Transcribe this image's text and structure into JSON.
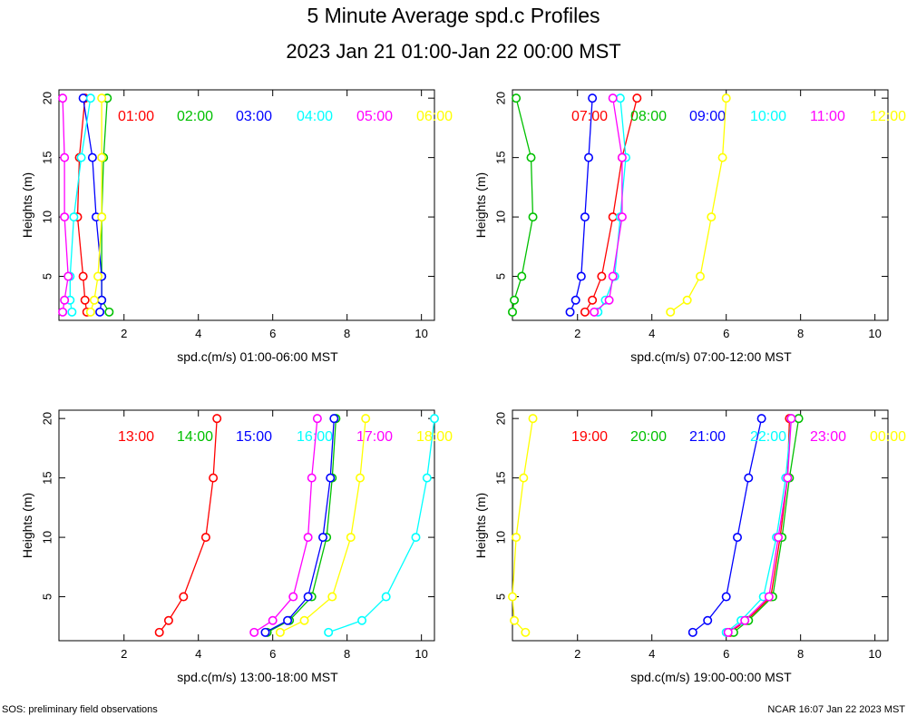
{
  "title": "5 Minute Average spd.c Profiles",
  "subtitle": "2023 Jan 21 01:00-Jan 22 00:00 MST",
  "footer_left": "SOS: preliminary field observations",
  "footer_right": "NCAR 16:07 Jan 22 2023 MST",
  "colors": [
    "#ff0000",
    "#00c000",
    "#0000ff",
    "#00ffff",
    "#ff00ff",
    "#ffff00"
  ],
  "chart_data": [
    {
      "type": "line",
      "xlabel": "spd.c(m/s) 01:00-06:00 MST",
      "ylabel": "Heights (m)",
      "xlim": [
        0.25,
        10.35
      ],
      "ylim": [
        1.3,
        20.7
      ],
      "xticks": [
        2,
        4,
        6,
        8,
        10
      ],
      "yticks": [
        5,
        10,
        15,
        20
      ],
      "heights": [
        2,
        3,
        5,
        10,
        15,
        20
      ],
      "series": [
        {
          "name": "01:00",
          "values": [
            1.0,
            0.95,
            0.9,
            0.75,
            0.8,
            0.95
          ]
        },
        {
          "name": "02:00",
          "values": [
            1.6,
            1.4,
            1.4,
            1.4,
            1.45,
            1.55
          ]
        },
        {
          "name": "03:00",
          "values": [
            1.35,
            1.4,
            1.4,
            1.25,
            1.15,
            0.9
          ]
        },
        {
          "name": "04:00",
          "values": [
            0.6,
            0.55,
            0.55,
            0.65,
            0.85,
            1.1
          ]
        },
        {
          "name": "05:00",
          "values": [
            0.35,
            0.4,
            0.5,
            0.4,
            0.4,
            0.35
          ]
        },
        {
          "name": "06:00",
          "values": [
            1.1,
            1.2,
            1.3,
            1.4,
            1.4,
            1.4
          ]
        }
      ]
    },
    {
      "type": "line",
      "xlabel": "spd.c(m/s) 07:00-12:00 MST",
      "ylabel": "Heights (m)",
      "xlim": [
        0.25,
        10.35
      ],
      "ylim": [
        1.3,
        20.7
      ],
      "xticks": [
        2,
        4,
        6,
        8,
        10
      ],
      "yticks": [
        5,
        10,
        15,
        20
      ],
      "heights": [
        2,
        3,
        5,
        10,
        15,
        20
      ],
      "series": [
        {
          "name": "07:00",
          "values": [
            2.2,
            2.4,
            2.65,
            2.95,
            3.2,
            3.6
          ]
        },
        {
          "name": "08:00",
          "values": [
            0.25,
            0.3,
            0.5,
            0.8,
            0.75,
            0.35
          ]
        },
        {
          "name": "09:00",
          "values": [
            1.8,
            1.95,
            2.1,
            2.2,
            2.3,
            2.4
          ]
        },
        {
          "name": "10:00",
          "values": [
            2.55,
            2.75,
            3.0,
            3.15,
            3.3,
            3.15
          ]
        },
        {
          "name": "11:00",
          "values": [
            2.45,
            2.85,
            2.95,
            3.2,
            3.2,
            2.95
          ]
        },
        {
          "name": "12:00",
          "values": [
            4.5,
            4.95,
            5.3,
            5.6,
            5.9,
            6.0
          ]
        }
      ]
    },
    {
      "type": "line",
      "xlabel": "spd.c(m/s) 13:00-18:00 MST",
      "ylabel": "Heights (m)",
      "xlim": [
        0.25,
        10.35
      ],
      "ylim": [
        1.3,
        20.7
      ],
      "xticks": [
        2,
        4,
        6,
        8,
        10
      ],
      "yticks": [
        5,
        10,
        15,
        20
      ],
      "heights": [
        2,
        3,
        5,
        10,
        15,
        20
      ],
      "series": [
        {
          "name": "13:00",
          "values": [
            2.95,
            3.2,
            3.6,
            4.2,
            4.4,
            4.5
          ]
        },
        {
          "name": "14:00",
          "values": [
            5.85,
            6.45,
            7.05,
            7.45,
            7.6,
            7.7
          ]
        },
        {
          "name": "15:00",
          "values": [
            5.8,
            6.4,
            6.95,
            7.35,
            7.55,
            7.65
          ]
        },
        {
          "name": "16:00",
          "values": [
            7.5,
            8.4,
            9.05,
            9.85,
            10.15,
            10.35
          ]
        },
        {
          "name": "17:00",
          "values": [
            5.5,
            6.0,
            6.55,
            6.95,
            7.05,
            7.2
          ]
        },
        {
          "name": "18:00",
          "values": [
            6.2,
            6.85,
            7.6,
            8.1,
            8.35,
            8.5
          ]
        }
      ]
    },
    {
      "type": "line",
      "xlabel": "spd.c(m/s) 19:00-00:00 MST",
      "ylabel": "Heights (m)",
      "xlim": [
        0.25,
        10.35
      ],
      "ylim": [
        1.3,
        20.7
      ],
      "xticks": [
        2,
        4,
        6,
        8,
        10
      ],
      "yticks": [
        5,
        10,
        15,
        20
      ],
      "heights": [
        2,
        3,
        5,
        10,
        15,
        20
      ],
      "series": [
        {
          "name": "19:00",
          "values": [
            6.1,
            6.55,
            7.2,
            7.45,
            7.65,
            7.7
          ]
        },
        {
          "name": "20:00",
          "values": [
            6.2,
            6.6,
            7.25,
            7.5,
            7.7,
            7.95
          ]
        },
        {
          "name": "21:00",
          "values": [
            5.1,
            5.5,
            6.0,
            6.3,
            6.6,
            6.95
          ]
        },
        {
          "name": "22:00",
          "values": [
            6.0,
            6.4,
            7.0,
            7.35,
            7.6,
            7.75
          ]
        },
        {
          "name": "23:00",
          "values": [
            6.05,
            6.5,
            7.15,
            7.4,
            7.65,
            7.75
          ]
        },
        {
          "name": "00:00",
          "values": [
            0.6,
            0.3,
            0.25,
            0.35,
            0.55,
            0.8
          ]
        }
      ]
    }
  ]
}
